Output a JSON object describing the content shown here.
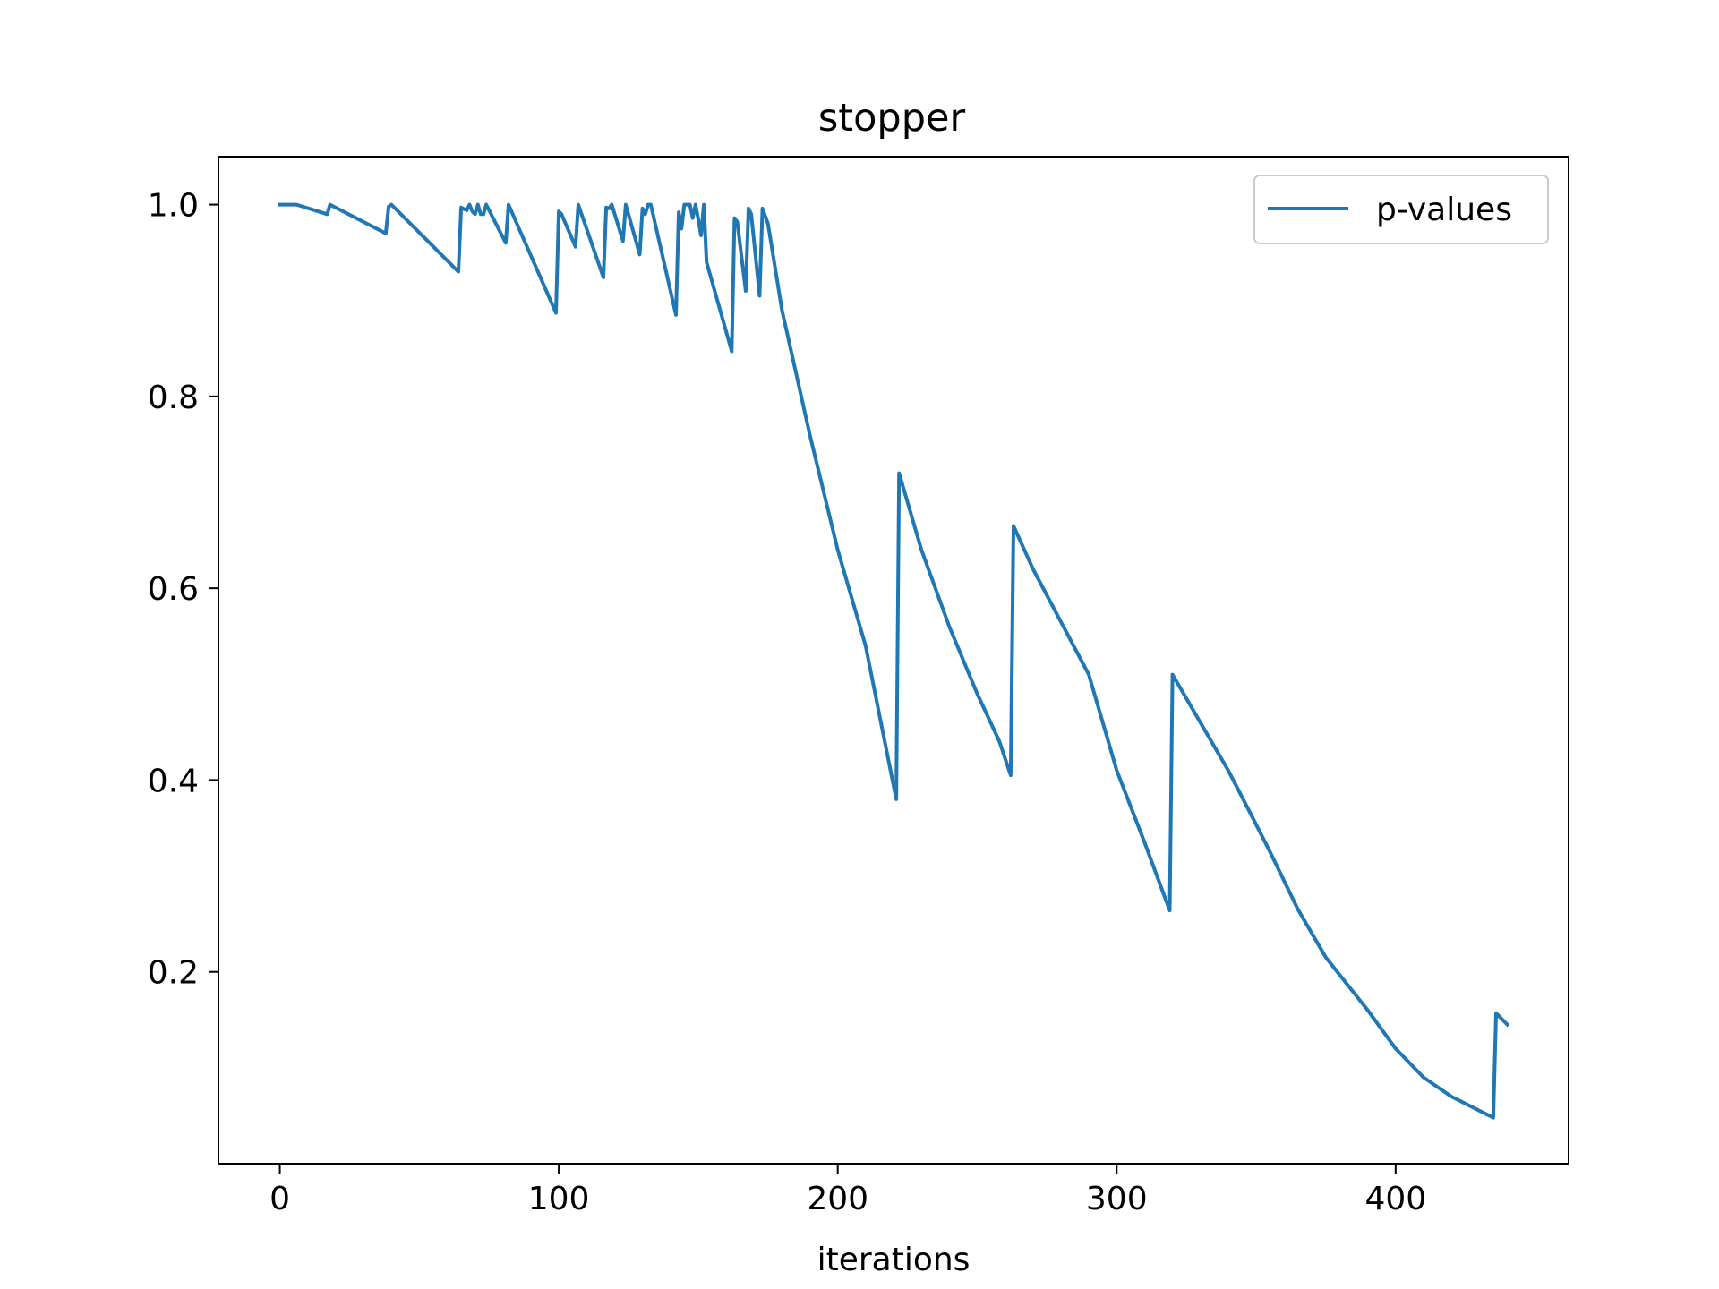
{
  "chart_data": {
    "type": "line",
    "title": "stopper",
    "xlabel": "iterations",
    "ylabel": "",
    "xlim": [
      -22,
      462
    ],
    "ylim": [
      0.0,
      1.05
    ],
    "xticks": [
      0,
      100,
      200,
      300,
      400
    ],
    "xtick_labels": [
      "0",
      "100",
      "200",
      "300",
      "400"
    ],
    "yticks": [
      0.2,
      0.4,
      0.6,
      0.8,
      1.0
    ],
    "ytick_labels": [
      "0.2",
      "0.4",
      "0.6",
      "0.8",
      "1.0"
    ],
    "grid": false,
    "legend_position": "top-right",
    "series": [
      {
        "name": "p-values",
        "color": "#1f77b4",
        "x": [
          0,
          6,
          17,
          18,
          38,
          39,
          40,
          64,
          65,
          67,
          68,
          69,
          70,
          71,
          72,
          73,
          74,
          81,
          82,
          99,
          100,
          101,
          106,
          107,
          116,
          117,
          118,
          119,
          123,
          124,
          129,
          130,
          131,
          132,
          133,
          142,
          143,
          144,
          145,
          146,
          147,
          148,
          149,
          150,
          151,
          152,
          153,
          162,
          163,
          164,
          167,
          168,
          169,
          172,
          173,
          175,
          180,
          190,
          200,
          210,
          221,
          222,
          230,
          240,
          250,
          258,
          262,
          263,
          270,
          280,
          290,
          295,
          300,
          310,
          319,
          320,
          330,
          340,
          348,
          355,
          365,
          375,
          390,
          400,
          410,
          420,
          435,
          436,
          440
        ],
        "y": [
          1.0,
          1.0,
          0.99,
          1.0,
          0.97,
          0.998,
          1.0,
          0.93,
          0.997,
          0.994,
          1.0,
          0.993,
          0.99,
          1.0,
          0.99,
          0.99,
          1.0,
          0.96,
          1.0,
          0.887,
          0.993,
          0.99,
          0.956,
          1.0,
          0.924,
          0.997,
          0.996,
          1.0,
          0.962,
          1.0,
          0.948,
          0.996,
          0.99,
          1.0,
          1.0,
          0.885,
          0.992,
          0.975,
          1.0,
          1.0,
          1.0,
          0.986,
          1.0,
          0.985,
          0.968,
          1.0,
          0.94,
          0.847,
          0.986,
          0.982,
          0.91,
          0.996,
          0.99,
          0.905,
          0.996,
          0.98,
          0.89,
          0.76,
          0.64,
          0.54,
          0.38,
          0.72,
          0.64,
          0.56,
          0.49,
          0.44,
          0.405,
          0.665,
          0.62,
          0.565,
          0.51,
          0.46,
          0.41,
          0.335,
          0.264,
          0.51,
          0.46,
          0.41,
          0.365,
          0.325,
          0.265,
          0.215,
          0.16,
          0.12,
          0.09,
          0.07,
          0.048,
          0.157,
          0.145
        ]
      }
    ]
  }
}
